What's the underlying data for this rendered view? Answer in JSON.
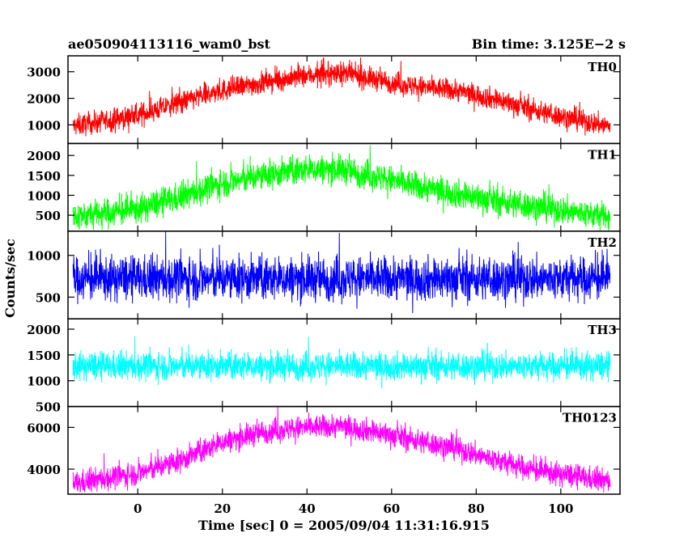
{
  "header": {
    "title": "ae050904113116_wam0_bst",
    "bin_time": "Bin time: 3.125E−2 s"
  },
  "axes": {
    "xlabel": "Time [sec] 0 = 2005/09/04 11:31:16.915",
    "ylabel": "Counts/sec"
  },
  "chart_data": {
    "type": "line",
    "title": "ae050904113116_wam0_bst",
    "xlabel": "Time [sec] 0 = 2005/09/04 11:31:16.915",
    "ylabel": "Counts/sec",
    "xlim": [
      -16.5,
      114
    ],
    "x_range": [
      -15.3,
      111.7
    ],
    "x_ticks": [
      0,
      20,
      40,
      60,
      80,
      100
    ],
    "bin_time_s": 0.03125,
    "grid": false,
    "panels": [
      {
        "name": "TH0",
        "color": "#ff0000",
        "ylim": [
          300,
          3600
        ],
        "y_ticks": [
          1000,
          2000,
          3000
        ],
        "profile": [
          [
            -15.3,
            950
          ],
          [
            0,
            1350
          ],
          [
            10,
            1850
          ],
          [
            20,
            2300
          ],
          [
            30,
            2600
          ],
          [
            40,
            2850
          ],
          [
            48,
            2950
          ],
          [
            55,
            2750
          ],
          [
            65,
            2450
          ],
          [
            75,
            2300
          ],
          [
            85,
            1950
          ],
          [
            95,
            1500
          ],
          [
            105,
            1150
          ],
          [
            111.7,
            950
          ]
        ],
        "noise": 380
      },
      {
        "name": "TH1",
        "color": "#00ff00",
        "ylim": [
          100,
          2300
        ],
        "y_ticks": [
          500,
          1000,
          1500,
          2000
        ],
        "profile": [
          [
            -15.3,
            450
          ],
          [
            0,
            650
          ],
          [
            10,
            950
          ],
          [
            20,
            1300
          ],
          [
            30,
            1500
          ],
          [
            40,
            1650
          ],
          [
            48,
            1650
          ],
          [
            55,
            1500
          ],
          [
            65,
            1250
          ],
          [
            75,
            1050
          ],
          [
            85,
            850
          ],
          [
            95,
            700
          ],
          [
            105,
            550
          ],
          [
            111.7,
            450
          ]
        ],
        "noise": 330
      },
      {
        "name": "TH2",
        "color": "#0000ff",
        "ylim": [
          240,
          1290
        ],
        "y_ticks": [
          500,
          1000
        ],
        "profile": [
          [
            -15.3,
            720
          ],
          [
            111.7,
            720
          ]
        ],
        "noise": 240
      },
      {
        "name": "TH3",
        "color": "#00ffff",
        "ylim": [
          500,
          2200
        ],
        "y_ticks": [
          500,
          1000,
          1500,
          2000
        ],
        "profile": [
          [
            -15.3,
            1280
          ],
          [
            111.7,
            1280
          ]
        ],
        "noise": 250
      },
      {
        "name": "TH0123",
        "color": "#ff00ff",
        "ylim": [
          2800,
          7000
        ],
        "y_ticks": [
          4000,
          6000
        ],
        "profile": [
          [
            -15.3,
            3300
          ],
          [
            0,
            3800
          ],
          [
            10,
            4400
          ],
          [
            20,
            5300
          ],
          [
            30,
            5800
          ],
          [
            40,
            6000
          ],
          [
            48,
            6050
          ],
          [
            55,
            5850
          ],
          [
            65,
            5400
          ],
          [
            75,
            5000
          ],
          [
            85,
            4400
          ],
          [
            95,
            3900
          ],
          [
            105,
            3600
          ],
          [
            111.7,
            3400
          ]
        ],
        "noise": 520
      }
    ]
  }
}
